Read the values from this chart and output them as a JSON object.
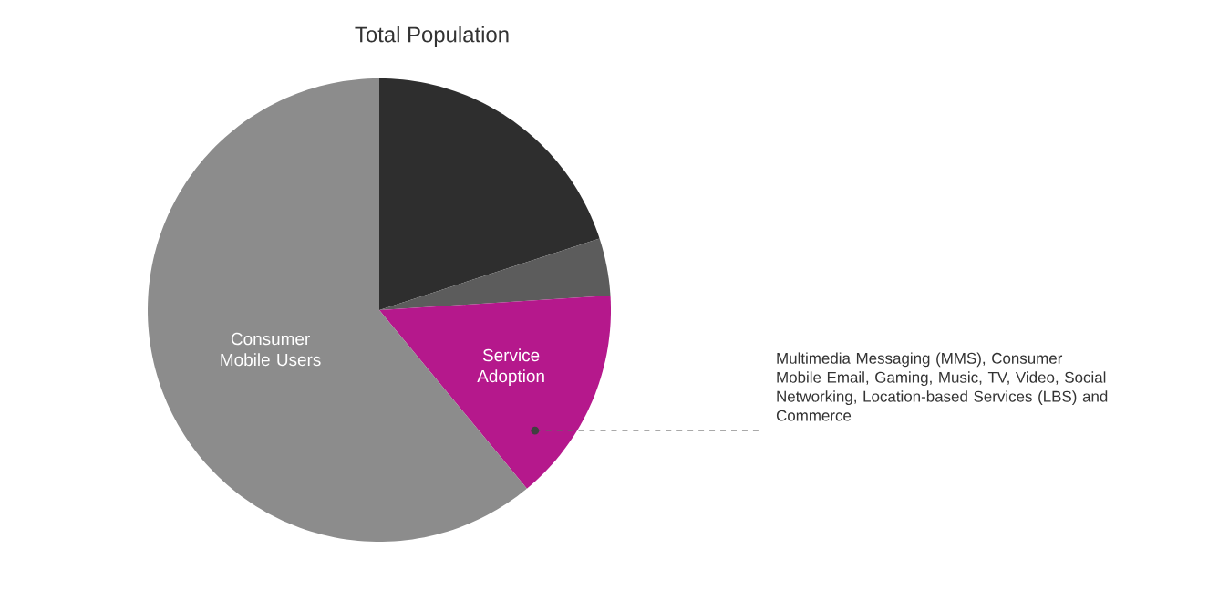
{
  "chart_data": {
    "type": "pie",
    "title": "Total Population",
    "categories": [
      null,
      null,
      "Service Adoption",
      "Consumer Mobile Users"
    ],
    "values": [
      20,
      4,
      15,
      61
    ],
    "colors": [
      "#2e2e2e",
      "#5c5c5c",
      "#b5188c",
      "#8c8c8c"
    ],
    "annotations": [
      "Multimedia Messaging (MMS), Consumer Mobile Email, Gaming, Music, TV, Video, Social Networking, Location-based Services (LBS) and Commerce"
    ]
  }
}
